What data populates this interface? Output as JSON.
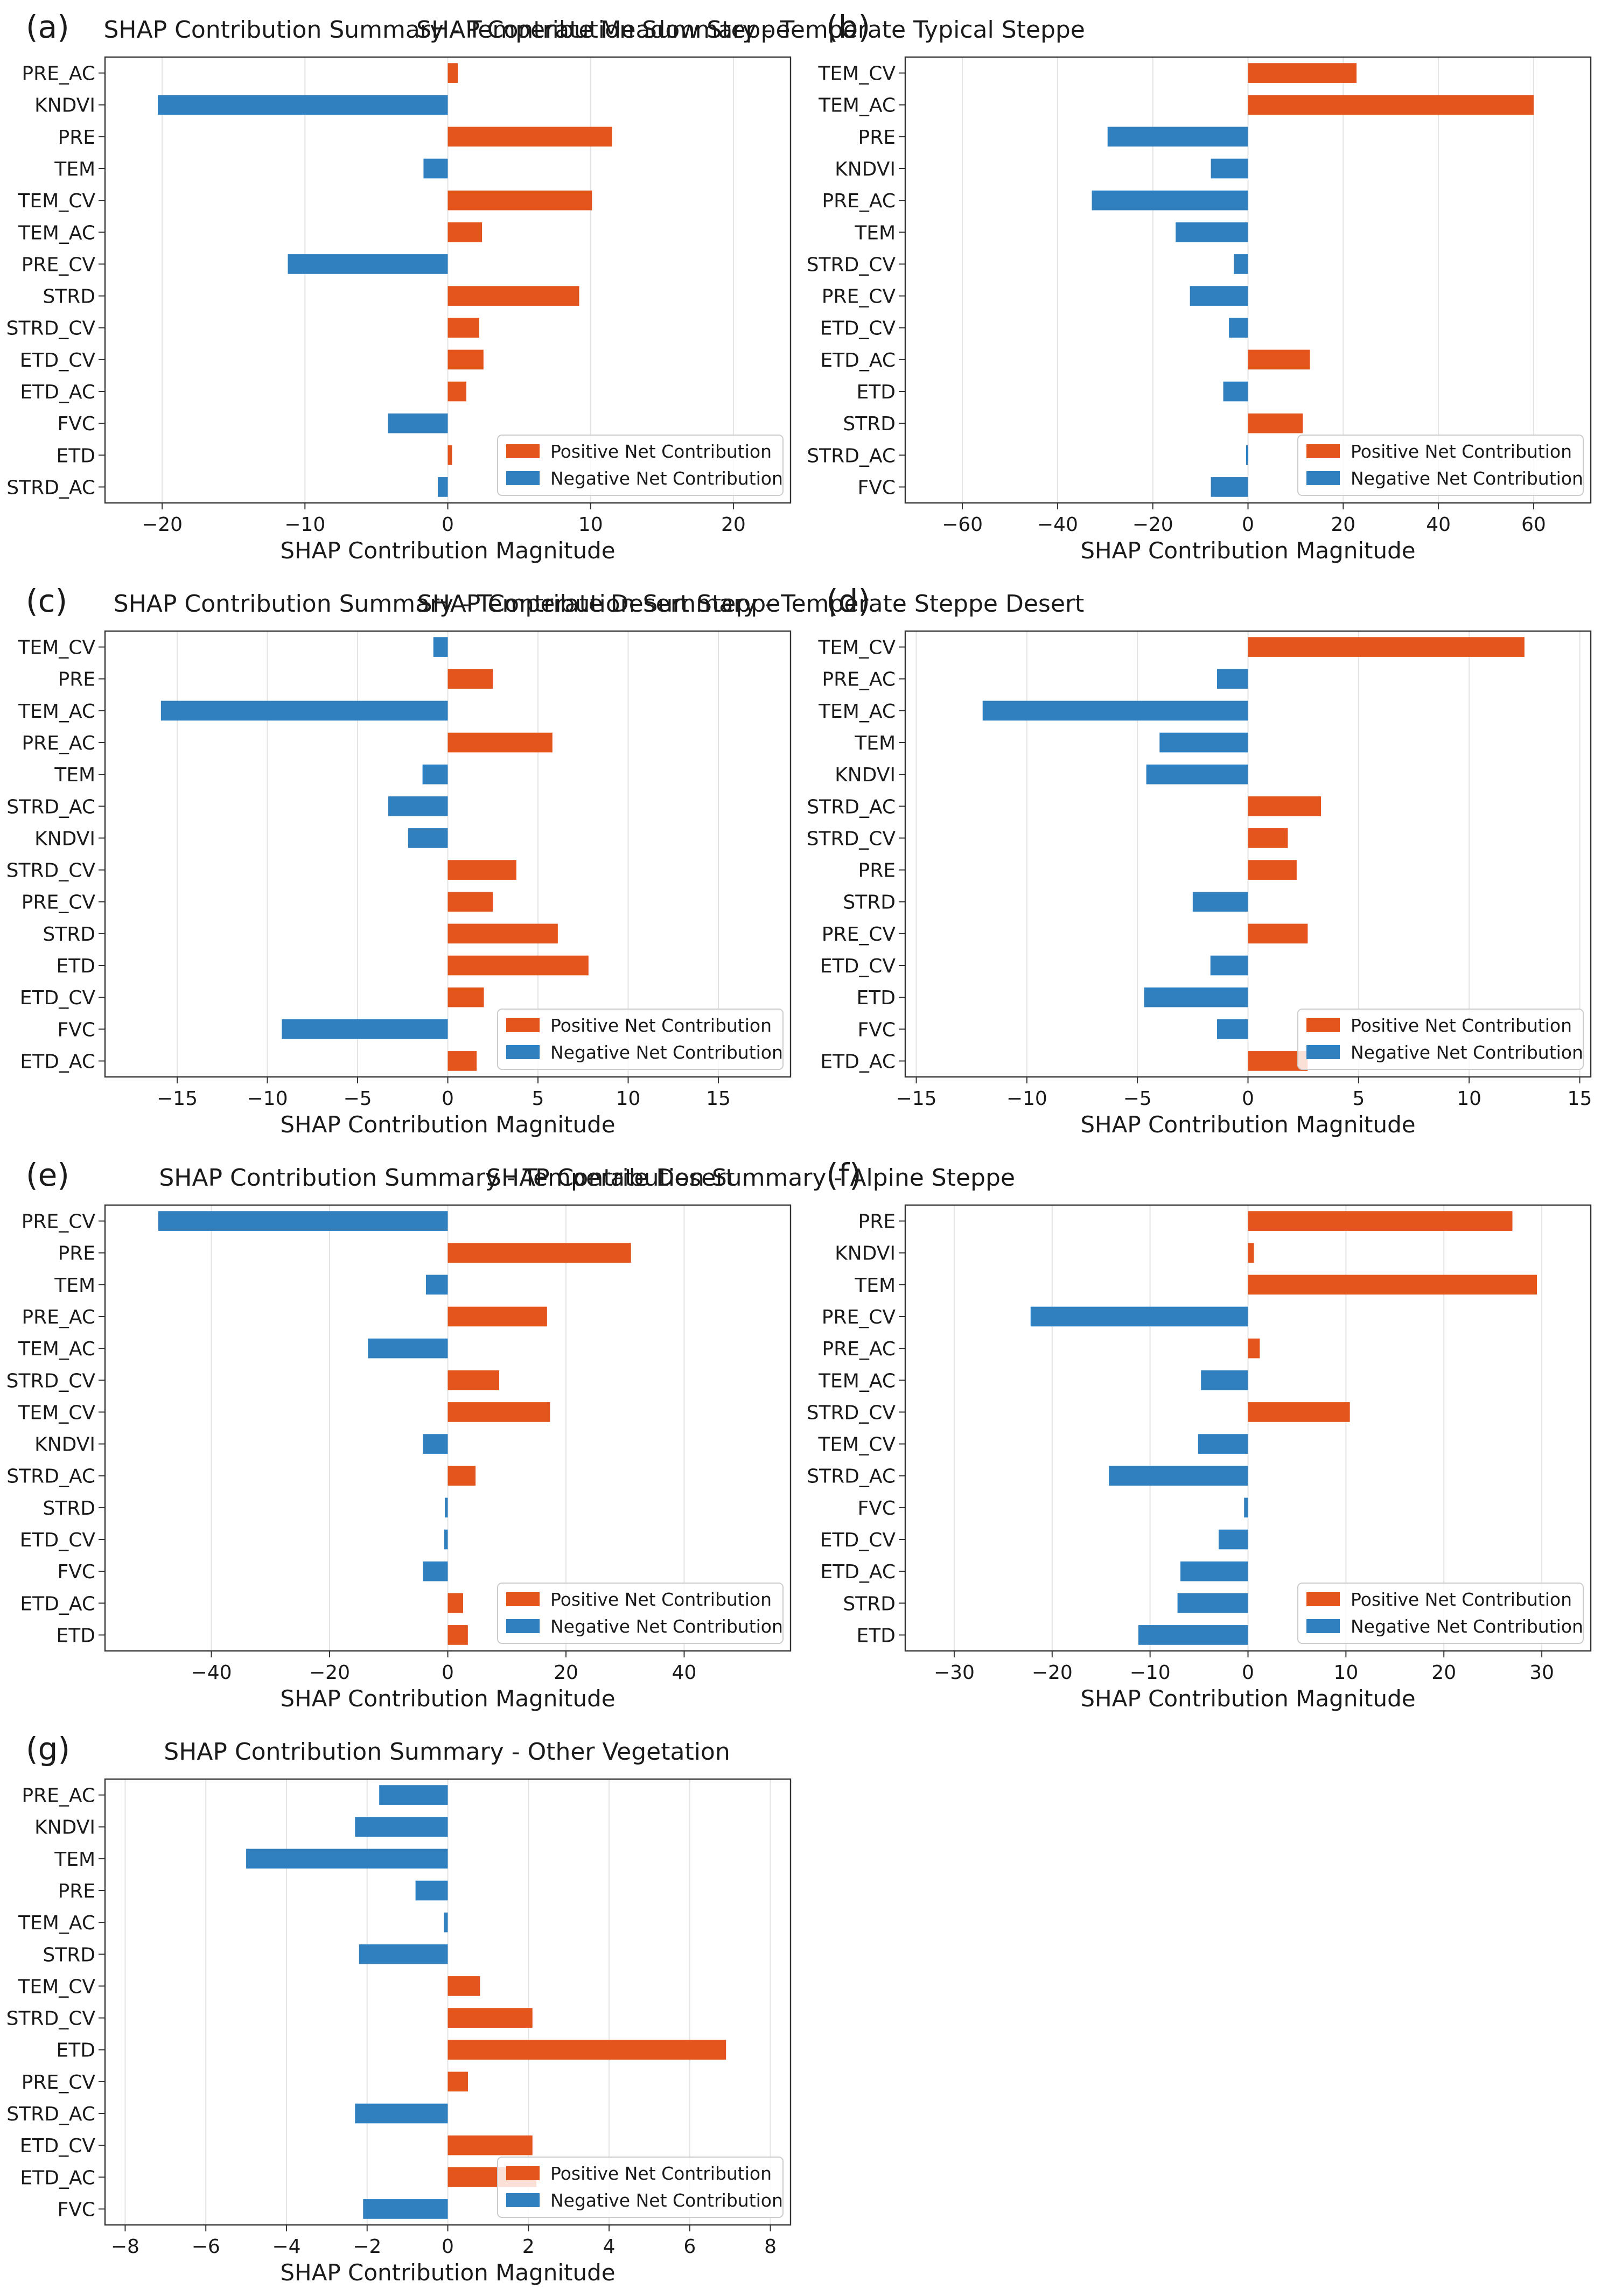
{
  "colors": {
    "positive": "#e4541d",
    "negative": "#3080c0"
  },
  "legend": {
    "positive": "Positive Net Contribution",
    "negative": "Negative Net Contribution",
    "placement": "lower-right"
  },
  "chart_data": [
    {
      "panel": "(a)",
      "type": "bar",
      "orientation": "horizontal",
      "title": "SHAP Contribution Summary - Temperate Meadow Steppe",
      "xlabel": "SHAP Contribution Magnitude",
      "ylabel": "",
      "xlim": [
        -24,
        24
      ],
      "xticks": [
        -20,
        -10,
        0,
        10,
        20
      ],
      "grid": true,
      "categories": [
        "PRE_AC",
        "KNDVI",
        "PRE",
        "TEM",
        "TEM_CV",
        "TEM_AC",
        "PRE_CV",
        "STRD",
        "STRD_CV",
        "ETD_CV",
        "ETD_AC",
        "FVC",
        "ETD",
        "STRD_AC"
      ],
      "values": [
        0.7,
        -20.3,
        11.5,
        -1.7,
        10.1,
        2.4,
        -11.2,
        9.2,
        2.2,
        2.5,
        1.3,
        -4.2,
        0.3,
        -0.7
      ]
    },
    {
      "panel": "(b)",
      "type": "bar",
      "orientation": "horizontal",
      "title": "SHAP Contribution Summary - Temperate Typical Steppe",
      "xlabel": "SHAP Contribution Magnitude",
      "ylabel": "",
      "xlim": [
        -72,
        72
      ],
      "xticks": [
        -60,
        -40,
        -20,
        0,
        20,
        40,
        60
      ],
      "grid": true,
      "categories": [
        "TEM_CV",
        "TEM_AC",
        "PRE",
        "KNDVI",
        "PRE_AC",
        "TEM",
        "STRD_CV",
        "PRE_CV",
        "ETD_CV",
        "ETD_AC",
        "ETD",
        "STRD",
        "STRD_AC",
        "FVC"
      ],
      "values": [
        22.8,
        60.0,
        -29.5,
        -7.8,
        -32.8,
        -15.2,
        -3.0,
        -12.2,
        -4.0,
        13.0,
        -5.2,
        11.5,
        -0.4,
        -7.8
      ]
    },
    {
      "panel": "(c)",
      "type": "bar",
      "orientation": "horizontal",
      "title": "SHAP Contribution Summary - Temperate Desert Steppe",
      "xlabel": "SHAP Contribution Magnitude",
      "ylabel": "",
      "xlim": [
        -19,
        19
      ],
      "xticks": [
        -15,
        -10,
        -5,
        0,
        5,
        10,
        15
      ],
      "grid": true,
      "categories": [
        "TEM_CV",
        "PRE",
        "TEM_AC",
        "PRE_AC",
        "TEM",
        "STRD_AC",
        "KNDVI",
        "STRD_CV",
        "PRE_CV",
        "STRD",
        "ETD",
        "ETD_CV",
        "FVC",
        "ETD_AC"
      ],
      "values": [
        -0.8,
        2.5,
        -15.9,
        5.8,
        -1.4,
        -3.3,
        -2.2,
        3.8,
        2.5,
        6.1,
        7.8,
        2.0,
        -9.2,
        1.6
      ]
    },
    {
      "panel": "(d)",
      "type": "bar",
      "orientation": "horizontal",
      "title": "SHAP Contribution Summary - Temperate Steppe Desert",
      "xlabel": "SHAP Contribution Magnitude",
      "ylabel": "",
      "xlim": [
        -15.5,
        15.5
      ],
      "xticks": [
        -15,
        -10,
        -5,
        0,
        5,
        10,
        15
      ],
      "grid": true,
      "categories": [
        "TEM_CV",
        "PRE_AC",
        "TEM_AC",
        "TEM",
        "KNDVI",
        "STRD_AC",
        "STRD_CV",
        "PRE",
        "STRD",
        "PRE_CV",
        "ETD_CV",
        "ETD",
        "FVC",
        "ETD_AC"
      ],
      "values": [
        12.5,
        -1.4,
        -12.0,
        -4.0,
        -4.6,
        3.3,
        1.8,
        2.2,
        -2.5,
        2.7,
        -1.7,
        -4.7,
        -1.4,
        2.7
      ]
    },
    {
      "panel": "(e)",
      "type": "bar",
      "orientation": "horizontal",
      "title": "SHAP Contribution Summary - Temperate Desert",
      "xlabel": "SHAP Contribution Magnitude",
      "ylabel": "",
      "xlim": [
        -58,
        58
      ],
      "xticks": [
        -40,
        -20,
        0,
        20,
        40
      ],
      "grid": true,
      "categories": [
        "PRE_CV",
        "PRE",
        "TEM",
        "PRE_AC",
        "TEM_AC",
        "STRD_CV",
        "TEM_CV",
        "KNDVI",
        "STRD_AC",
        "STRD",
        "ETD_CV",
        "FVC",
        "ETD_AC",
        "ETD"
      ],
      "values": [
        -49.0,
        31.0,
        -3.7,
        16.8,
        -13.5,
        8.7,
        17.3,
        -4.2,
        4.7,
        -0.5,
        -0.6,
        -4.2,
        2.6,
        3.4
      ]
    },
    {
      "panel": "(f)",
      "type": "bar",
      "orientation": "horizontal",
      "title": "SHAP Contribution Summary - Alpine Steppe",
      "xlabel": "SHAP Contribution Magnitude",
      "ylabel": "",
      "xlim": [
        -35,
        35
      ],
      "xticks": [
        -30,
        -20,
        -10,
        0,
        10,
        20,
        30
      ],
      "grid": true,
      "categories": [
        "PRE",
        "KNDVI",
        "TEM",
        "PRE_CV",
        "PRE_AC",
        "TEM_AC",
        "STRD_CV",
        "TEM_CV",
        "STRD_AC",
        "FVC",
        "ETD_CV",
        "ETD_AC",
        "STRD",
        "ETD"
      ],
      "values": [
        27.0,
        0.6,
        29.5,
        -22.2,
        1.2,
        -4.8,
        10.4,
        -5.1,
        -14.2,
        -0.4,
        -3.0,
        -6.9,
        -7.2,
        -11.2
      ]
    },
    {
      "panel": "(g)",
      "type": "bar",
      "orientation": "horizontal",
      "title": "SHAP Contribution Summary - Other Vegetation",
      "xlabel": "SHAP Contribution Magnitude",
      "ylabel": "",
      "xlim": [
        -8.5,
        8.5
      ],
      "xticks": [
        -8,
        -6,
        -4,
        -2,
        0,
        2,
        4,
        6,
        8
      ],
      "grid": true,
      "categories": [
        "PRE_AC",
        "KNDVI",
        "TEM",
        "PRE",
        "TEM_AC",
        "STRD",
        "TEM_CV",
        "STRD_CV",
        "ETD",
        "PRE_CV",
        "STRD_AC",
        "ETD_CV",
        "ETD_AC",
        "FVC"
      ],
      "values": [
        -1.7,
        -2.3,
        -5.0,
        -0.8,
        -0.1,
        -2.2,
        0.8,
        2.1,
        6.9,
        0.5,
        -2.3,
        2.1,
        2.2,
        -2.1
      ]
    }
  ]
}
